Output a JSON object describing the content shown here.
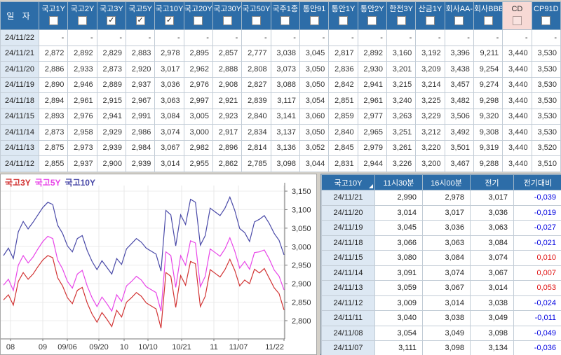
{
  "top_table": {
    "date_header": "일 자",
    "columns": [
      {
        "label": "국고1Y",
        "checked": false,
        "highlight": false
      },
      {
        "label": "국고2Y",
        "checked": false,
        "highlight": false
      },
      {
        "label": "국고3Y",
        "checked": true,
        "highlight": false
      },
      {
        "label": "국고5Y",
        "checked": true,
        "highlight": false
      },
      {
        "label": "국고10Y",
        "checked": true,
        "highlight": false
      },
      {
        "label": "국고20Y",
        "checked": false,
        "highlight": false
      },
      {
        "label": "국고30Y",
        "checked": false,
        "highlight": false
      },
      {
        "label": "국고50Y",
        "checked": false,
        "highlight": false
      },
      {
        "label": "국주1종",
        "checked": false,
        "highlight": false
      },
      {
        "label": "통안91",
        "checked": false,
        "highlight": false
      },
      {
        "label": "통안1Y",
        "checked": false,
        "highlight": false
      },
      {
        "label": "통안2Y",
        "checked": false,
        "highlight": false
      },
      {
        "label": "한전3Y",
        "checked": false,
        "highlight": false
      },
      {
        "label": "산금1Y",
        "checked": false,
        "highlight": false
      },
      {
        "label": "회사AA-",
        "checked": false,
        "highlight": false
      },
      {
        "label": "회사BBB-",
        "checked": false,
        "highlight": false
      },
      {
        "label": "CD",
        "checked": false,
        "highlight": true
      },
      {
        "label": "CP91D",
        "checked": false,
        "highlight": false
      }
    ],
    "rows": [
      {
        "date": "24/11/22",
        "values": [
          "-",
          "-",
          "-",
          "-",
          "-",
          "-",
          "-",
          "-",
          "-",
          "-",
          "-",
          "-",
          "-",
          "-",
          "-",
          "-",
          "-",
          "-"
        ]
      },
      {
        "date": "24/11/21",
        "values": [
          "2,872",
          "2,892",
          "2,829",
          "2,883",
          "2,978",
          "2,895",
          "2,857",
          "2,777",
          "3,038",
          "3,045",
          "2,817",
          "2,892",
          "3,160",
          "3,192",
          "3,396",
          "9,211",
          "3,440",
          "3,530"
        ]
      },
      {
        "date": "24/11/20",
        "values": [
          "2,886",
          "2,933",
          "2,873",
          "2,920",
          "3,017",
          "2,962",
          "2,888",
          "2,808",
          "3,073",
          "3,050",
          "2,836",
          "2,930",
          "3,201",
          "3,209",
          "3,438",
          "9,254",
          "3,440",
          "3,530"
        ]
      },
      {
        "date": "24/11/19",
        "values": [
          "2,890",
          "2,946",
          "2,889",
          "2,937",
          "3,036",
          "2,976",
          "2,908",
          "2,827",
          "3,088",
          "3,050",
          "2,842",
          "2,941",
          "3,215",
          "3,214",
          "3,457",
          "9,274",
          "3,440",
          "3,530"
        ]
      },
      {
        "date": "24/11/18",
        "values": [
          "2,894",
          "2,961",
          "2,915",
          "2,967",
          "3,063",
          "2,997",
          "2,921",
          "2,839",
          "3,117",
          "3,054",
          "2,851",
          "2,961",
          "3,240",
          "3,225",
          "3,482",
          "9,298",
          "3,440",
          "3,530"
        ]
      },
      {
        "date": "24/11/15",
        "values": [
          "2,893",
          "2,976",
          "2,941",
          "2,991",
          "3,084",
          "3,005",
          "2,923",
          "2,840",
          "3,141",
          "3,060",
          "2,859",
          "2,977",
          "3,263",
          "3,229",
          "3,506",
          "9,320",
          "3,440",
          "3,530"
        ]
      },
      {
        "date": "24/11/14",
        "values": [
          "2,873",
          "2,958",
          "2,929",
          "2,986",
          "3,074",
          "3,000",
          "2,917",
          "2,834",
          "3,137",
          "3,050",
          "2,840",
          "2,965",
          "3,251",
          "3,212",
          "3,492",
          "9,308",
          "3,440",
          "3,530"
        ]
      },
      {
        "date": "24/11/13",
        "values": [
          "2,875",
          "2,973",
          "2,939",
          "2,984",
          "3,067",
          "2,982",
          "2,896",
          "2,814",
          "3,136",
          "3,052",
          "2,845",
          "2,979",
          "3,261",
          "3,220",
          "3,501",
          "9,319",
          "3,440",
          "3,520"
        ]
      },
      {
        "date": "24/11/12",
        "values": [
          "2,855",
          "2,937",
          "2,900",
          "2,939",
          "3,014",
          "2,955",
          "2,862",
          "2,785",
          "3,098",
          "3,044",
          "2,831",
          "2,944",
          "3,226",
          "3,200",
          "3,467",
          "9,288",
          "3,440",
          "3,510"
        ]
      }
    ]
  },
  "right_table": {
    "headers": [
      "국고10Y",
      "11시30분",
      "16시00분",
      "전기",
      "전기대비"
    ],
    "rows": [
      {
        "date": "24/11/21",
        "t1130": "2,990",
        "t1600": "2,978",
        "prev": "3,017",
        "diff": "-0,039",
        "dir": "down"
      },
      {
        "date": "24/11/20",
        "t1130": "3,014",
        "t1600": "3,017",
        "prev": "3,036",
        "diff": "-0,019",
        "dir": "down"
      },
      {
        "date": "24/11/19",
        "t1130": "3,045",
        "t1600": "3,036",
        "prev": "3,063",
        "diff": "-0,027",
        "dir": "down"
      },
      {
        "date": "24/11/18",
        "t1130": "3,066",
        "t1600": "3,063",
        "prev": "3,084",
        "diff": "-0,021",
        "dir": "down"
      },
      {
        "date": "24/11/15",
        "t1130": "3,080",
        "t1600": "3,084",
        "prev": "3,074",
        "diff": "0,010",
        "dir": "up"
      },
      {
        "date": "24/11/14",
        "t1130": "3,091",
        "t1600": "3,074",
        "prev": "3,067",
        "diff": "0,007",
        "dir": "up"
      },
      {
        "date": "24/11/13",
        "t1130": "3,059",
        "t1600": "3,067",
        "prev": "3,014",
        "diff": "0,053",
        "dir": "up"
      },
      {
        "date": "24/11/12",
        "t1130": "3,009",
        "t1600": "3,014",
        "prev": "3,038",
        "diff": "-0,024",
        "dir": "down"
      },
      {
        "date": "24/11/11",
        "t1130": "3,040",
        "t1600": "3,038",
        "prev": "3,049",
        "diff": "-0,011",
        "dir": "down"
      },
      {
        "date": "24/11/08",
        "t1130": "3,054",
        "t1600": "3,049",
        "prev": "3,098",
        "diff": "-0,049",
        "dir": "down"
      },
      {
        "date": "24/11/07",
        "t1130": "3,111",
        "t1600": "3,098",
        "prev": "3,134",
        "diff": "-0,036",
        "dir": "down"
      }
    ]
  },
  "chart_data": {
    "type": "line",
    "title": "",
    "xlabel": "",
    "ylabel": "",
    "ylim": [
      2.75,
      3.17
    ],
    "grid": true,
    "legend_position": "top-left",
    "y_ticks": [
      {
        "label": "3,150",
        "value": 3.15
      },
      {
        "label": "3,100",
        "value": 3.1
      },
      {
        "label": "3,050",
        "value": 3.05
      },
      {
        "label": "3,000",
        "value": 3.0
      },
      {
        "label": "2,950",
        "value": 2.95
      },
      {
        "label": "2,900",
        "value": 2.9
      },
      {
        "label": "2,850",
        "value": 2.85
      },
      {
        "label": "2,800",
        "value": 2.8
      }
    ],
    "x_ticks": [
      {
        "label": "08",
        "f": 0.025
      },
      {
        "label": "09",
        "f": 0.14
      },
      {
        "label": "09/06",
        "f": 0.2275
      },
      {
        "label": "09/20",
        "f": 0.34
      },
      {
        "label": "10",
        "f": 0.43
      },
      {
        "label": "10/10",
        "f": 0.515
      },
      {
        "label": "10/21",
        "f": 0.635
      },
      {
        "label": "11",
        "f": 0.75
      },
      {
        "label": "11/07",
        "f": 0.8375
      },
      {
        "label": "11/22",
        "f": 1.0
      }
    ],
    "series": [
      {
        "name": "국고3Y",
        "color": "#d23434",
        "values": [
          2.856,
          2.87,
          2.842,
          2.906,
          2.93,
          2.912,
          2.926,
          2.946,
          2.964,
          2.976,
          2.97,
          2.916,
          2.894,
          2.862,
          2.846,
          2.882,
          2.89,
          2.848,
          2.818,
          2.796,
          2.822,
          2.804,
          2.784,
          2.828,
          2.81,
          2.85,
          2.862,
          2.876,
          2.866,
          2.848,
          2.84,
          2.832,
          2.78,
          2.93,
          2.92,
          2.836,
          2.922,
          2.896,
          2.96,
          2.954,
          2.838,
          2.866,
          2.938,
          2.928,
          2.918,
          2.938,
          2.966,
          2.936,
          2.894,
          2.91,
          2.9,
          2.939,
          2.929,
          2.941,
          2.915,
          2.889,
          2.873,
          2.829
        ]
      },
      {
        "name": "국고5Y",
        "color": "#e846e8",
        "values": [
          2.896,
          2.912,
          2.882,
          2.95,
          2.976,
          2.956,
          2.972,
          2.994,
          3.014,
          3.028,
          3.022,
          2.964,
          2.94,
          2.906,
          2.888,
          2.926,
          2.936,
          2.894,
          2.862,
          2.838,
          2.864,
          2.846,
          2.826,
          2.87,
          2.852,
          2.894,
          2.906,
          2.92,
          2.91,
          2.892,
          2.884,
          2.876,
          2.826,
          2.986,
          2.976,
          2.89,
          2.976,
          2.95,
          3.016,
          3.01,
          2.892,
          2.92,
          2.994,
          2.984,
          2.974,
          2.994,
          3.024,
          2.988,
          2.942,
          2.96,
          2.939,
          2.984,
          2.986,
          2.991,
          2.967,
          2.937,
          2.92,
          2.883
        ]
      },
      {
        "name": "국고10Y",
        "color": "#4a4aa8",
        "values": [
          2.976,
          2.996,
          2.968,
          3.04,
          3.068,
          3.048,
          3.066,
          3.086,
          3.106,
          3.12,
          3.114,
          3.058,
          3.036,
          3.002,
          2.986,
          3.022,
          3.03,
          2.99,
          2.96,
          2.938,
          2.962,
          2.944,
          2.926,
          2.968,
          2.952,
          2.994,
          3.008,
          3.022,
          3.012,
          2.996,
          2.988,
          2.98,
          2.934,
          3.098,
          3.086,
          3.002,
          3.086,
          3.06,
          3.128,
          3.12,
          3.004,
          3.03,
          3.104,
          3.094,
          3.084,
          3.104,
          3.134,
          3.098,
          3.049,
          3.038,
          3.014,
          3.067,
          3.074,
          3.084,
          3.063,
          3.036,
          3.017,
          2.978
        ]
      }
    ]
  },
  "colors": {
    "header_blue": "#2d6da8",
    "highlight_pink": "#f7d9d5",
    "date_cell_blue": "#dde8f3",
    "diff_down_blue": "#0202e0",
    "diff_up_red": "#e01010"
  }
}
